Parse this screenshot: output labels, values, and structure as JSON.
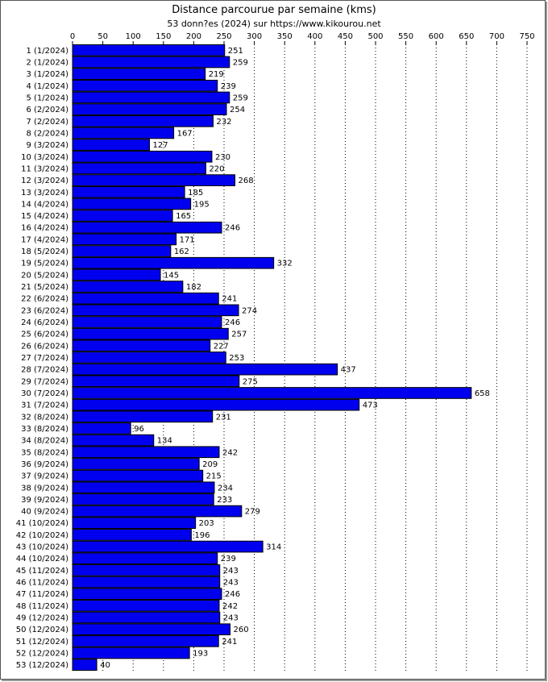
{
  "chart_data": {
    "type": "bar",
    "orientation": "horizontal",
    "title": "Distance parcourue par semaine (kms)",
    "subtitle": "53 donn?es (2024) sur https://www.kikourou.net",
    "xlim": [
      0,
      750
    ],
    "xticks": [
      0,
      50,
      100,
      150,
      200,
      250,
      300,
      350,
      400,
      450,
      500,
      550,
      600,
      650,
      700,
      750
    ],
    "grid": true,
    "bar_color": "#0000ee",
    "categories": [
      "1 (1/2024)",
      "2 (1/2024)",
      "3 (1/2024)",
      "4 (1/2024)",
      "5 (1/2024)",
      "6 (2/2024)",
      "7 (2/2024)",
      "8 (2/2024)",
      "9 (3/2024)",
      "10 (3/2024)",
      "11 (3/2024)",
      "12 (3/2024)",
      "13 (3/2024)",
      "14 (4/2024)",
      "15 (4/2024)",
      "16 (4/2024)",
      "17 (4/2024)",
      "18 (5/2024)",
      "19 (5/2024)",
      "20 (5/2024)",
      "21 (5/2024)",
      "22 (6/2024)",
      "23 (6/2024)",
      "24 (6/2024)",
      "25 (6/2024)",
      "26 (6/2024)",
      "27 (7/2024)",
      "28 (7/2024)",
      "29 (7/2024)",
      "30 (7/2024)",
      "31 (7/2024)",
      "32 (8/2024)",
      "33 (8/2024)",
      "34 (8/2024)",
      "35 (8/2024)",
      "36 (9/2024)",
      "37 (9/2024)",
      "38 (9/2024)",
      "39 (9/2024)",
      "40 (9/2024)",
      "41 (10/2024)",
      "42 (10/2024)",
      "43 (10/2024)",
      "44 (10/2024)",
      "45 (11/2024)",
      "46 (11/2024)",
      "47 (11/2024)",
      "48 (11/2024)",
      "49 (12/2024)",
      "50 (12/2024)",
      "51 (12/2024)",
      "52 (12/2024)",
      "53 (12/2024)"
    ],
    "values": [
      251,
      259,
      219,
      239,
      259,
      254,
      232,
      167,
      127,
      230,
      220,
      268,
      185,
      195,
      165,
      246,
      171,
      162,
      332,
      145,
      182,
      241,
      274,
      246,
      257,
      227,
      253,
      437,
      275,
      658,
      473,
      231,
      96,
      134,
      242,
      209,
      215,
      234,
      233,
      279,
      203,
      196,
      314,
      239,
      243,
      243,
      246,
      242,
      243,
      260,
      241,
      193,
      40
    ]
  }
}
